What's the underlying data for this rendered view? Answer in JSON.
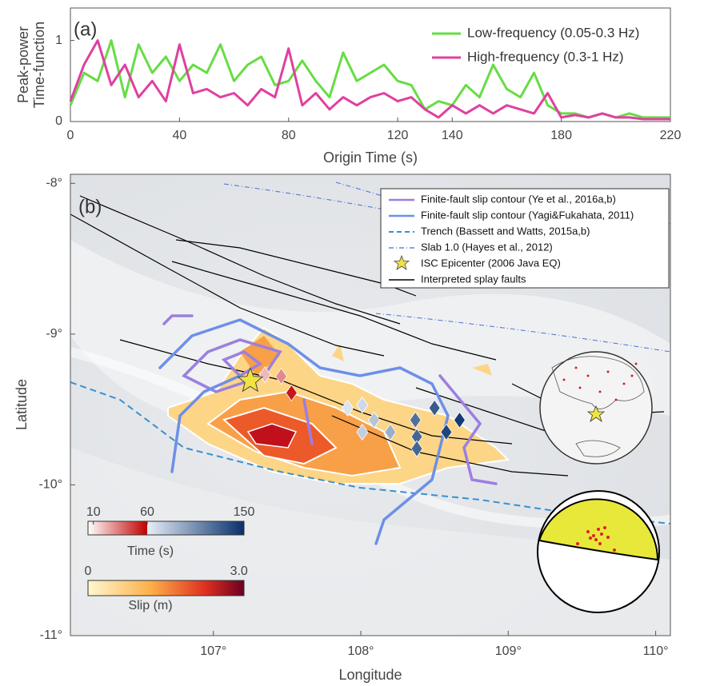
{
  "chart_data": [
    {
      "type": "line",
      "annotation": "(a)",
      "xlabel": "Origin Time (s)",
      "ylabel": [
        "Peak-power",
        "Time-function"
      ],
      "xlim": [
        0,
        220
      ],
      "xticks": [
        0,
        40,
        80,
        120,
        140,
        180,
        220
      ],
      "ylim": [
        0,
        1.4
      ],
      "yticks": [
        0,
        1
      ],
      "x": [
        0,
        5,
        10,
        15,
        20,
        25,
        30,
        35,
        40,
        45,
        50,
        55,
        60,
        65,
        70,
        75,
        80,
        85,
        90,
        95,
        100,
        105,
        110,
        115,
        120,
        125,
        130,
        135,
        140,
        145,
        150,
        155,
        160,
        165,
        170,
        175,
        180,
        185,
        190,
        195,
        200,
        205,
        210,
        215,
        220
      ],
      "series": [
        {
          "name": "Low-frequency (0.05-0.3 Hz)",
          "color": "#66dd44",
          "values": [
            0.2,
            0.6,
            0.5,
            1.0,
            0.3,
            0.95,
            0.6,
            0.8,
            0.5,
            0.7,
            0.6,
            0.95,
            0.5,
            0.7,
            0.8,
            0.45,
            0.5,
            0.75,
            0.5,
            0.3,
            0.85,
            0.5,
            0.6,
            0.7,
            0.5,
            0.45,
            0.15,
            0.25,
            0.2,
            0.45,
            0.3,
            0.7,
            0.4,
            0.3,
            0.6,
            0.2,
            0.1,
            0.1,
            0.05,
            0.1,
            0.05,
            0.1,
            0.05,
            0.05,
            0.05
          ]
        },
        {
          "name": "High-frequency (0.3-1 Hz)",
          "color": "#e040a0",
          "values": [
            0.25,
            0.7,
            1.0,
            0.45,
            0.7,
            0.3,
            0.5,
            0.25,
            0.95,
            0.35,
            0.4,
            0.3,
            0.35,
            0.2,
            0.4,
            0.3,
            0.9,
            0.2,
            0.35,
            0.15,
            0.3,
            0.2,
            0.3,
            0.35,
            0.25,
            0.3,
            0.15,
            0.05,
            0.2,
            0.1,
            0.2,
            0.1,
            0.2,
            0.15,
            0.1,
            0.35,
            0.05,
            0.08,
            0.05,
            0.1,
            0.05,
            0.05,
            0.03,
            0.03,
            0.03
          ]
        }
      ]
    },
    {
      "type": "scatter",
      "annotation": "(b)",
      "xlabel": "Longitude",
      "ylabel": "Latitude",
      "xlim": [
        106.03,
        110.1
      ],
      "xticks": [
        {
          "value": 107,
          "label": "107°"
        },
        {
          "value": 108,
          "label": "108°"
        },
        {
          "value": 109,
          "label": "109°"
        },
        {
          "value": 110,
          "label": "110°"
        }
      ],
      "ylim": [
        -11,
        -7.94
      ],
      "yticks": [
        {
          "value": -8,
          "label": "-8°"
        },
        {
          "value": -9,
          "label": "-9°"
        },
        {
          "value": -10,
          "label": "-10°"
        },
        {
          "value": -11,
          "label": "-11°"
        }
      ],
      "legend": [
        "Finite-fault slip contour (Ye et al., 2016a,b)",
        "Finite-fault slip contour (Yagi&Fukahata, 2011)",
        "Trench (Bassett and Watts, 2015a,b)",
        "Slab 1.0 (Hayes et al., 2012)",
        "ISC Epicenter (2006 Java EQ)",
        "Interpreted splay faults"
      ],
      "epicenter": {
        "x": 107.25,
        "y": -9.31,
        "color": "#f0e442"
      },
      "points": {
        "x": [
          107.35,
          107.46,
          107.53,
          107.91,
          108.01,
          108.09,
          108.01,
          108.2,
          108.37,
          108.38,
          108.38,
          108.5,
          108.58,
          108.67
        ],
        "y": [
          -9.27,
          -9.28,
          -9.39,
          -9.49,
          -9.47,
          -9.57,
          -9.65,
          -9.65,
          -9.57,
          -9.68,
          -9.76,
          -9.49,
          -9.65,
          -9.57
        ],
        "time": [
          20,
          30,
          55,
          65,
          70,
          80,
          75,
          90,
          120,
          125,
          125,
          130,
          140,
          145
        ]
      },
      "colorbars": [
        {
          "label": "Time (s)",
          "range": [
            5,
            150
          ],
          "ticks": [
            10,
            60,
            150
          ]
        },
        {
          "label": "Slip (m)",
          "range": [
            0,
            3.1
          ],
          "ticks": [
            0,
            {
              "value": 3,
              "label": "3.0"
            }
          ]
        }
      ]
    }
  ]
}
